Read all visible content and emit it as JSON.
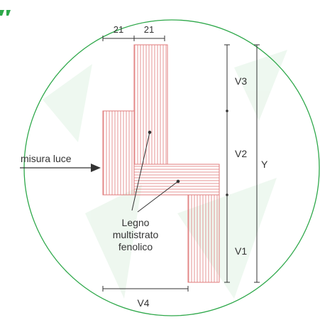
{
  "diagram": {
    "dimension_labels": {
      "top_left": "21",
      "top_right": "21",
      "v3": "V3",
      "v2": "V2",
      "v1": "V1",
      "y": "Y",
      "v4": "V4"
    },
    "arrow_label": "misura luce",
    "material_label": {
      "line1": "Legno",
      "line2": "multistrato",
      "line3": "fenolico"
    },
    "colors": {
      "outline_circle": "#2ea84a",
      "panel_hatch": "#e07b7b",
      "dimension_lines": "#333333",
      "watermark": "#eaf6ec"
    }
  }
}
